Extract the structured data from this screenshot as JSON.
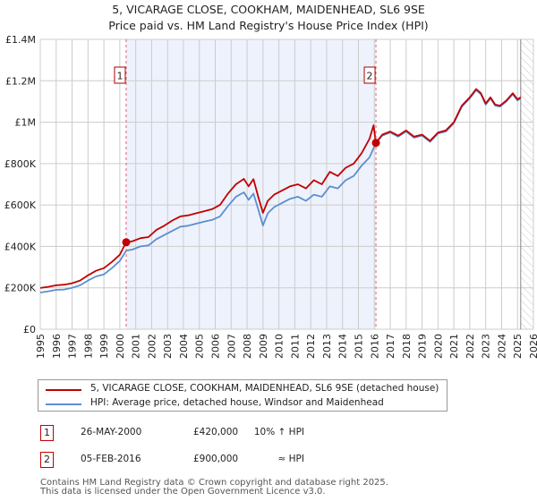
{
  "header": {
    "title": "5, VICARAGE CLOSE, COOKHAM, MAIDENHEAD, SL6 9SE",
    "subtitle": "Price paid vs. HM Land Registry's House Price Index (HPI)"
  },
  "legend": {
    "items": [
      {
        "label": "5, VICARAGE CLOSE, COOKHAM, MAIDENHEAD, SL6 9SE (detached house)",
        "color": "#c00000"
      },
      {
        "label": "HPI: Average price, detached house, Windsor and Maidenhead",
        "color": "#5b8fd0"
      }
    ]
  },
  "sales": [
    {
      "num": "1",
      "date": "26-MAY-2000",
      "price": "£420,000",
      "hpi": "10% ↑ HPI"
    },
    {
      "num": "2",
      "date": "05-FEB-2016",
      "price": "£900,000",
      "hpi": "≈ HPI"
    }
  ],
  "footer": {
    "line1": "Contains HM Land Registry data © Crown copyright and database right 2025.",
    "line2": "This data is licensed under the Open Government Licence v3.0."
  },
  "chart_data": {
    "type": "line",
    "title": "5, VICARAGE CLOSE, COOKHAM, MAIDENHEAD, SL6 9SE",
    "subtitle": "Price paid vs. HM Land Registry's House Price Index (HPI)",
    "xlabel": "",
    "ylabel": "",
    "xlim": [
      1995,
      2026
    ],
    "ylim": [
      0,
      1400000
    ],
    "grid": true,
    "legend_position": "bottom",
    "x_ticks": [
      "1995",
      "1996",
      "1997",
      "1998",
      "1999",
      "2000",
      "2001",
      "2002",
      "2003",
      "2004",
      "2005",
      "2006",
      "2007",
      "2008",
      "2009",
      "2010",
      "2011",
      "2012",
      "2013",
      "2014",
      "2015",
      "2016",
      "2017",
      "2018",
      "2019",
      "2020",
      "2021",
      "2022",
      "2023",
      "2024",
      "2025",
      "2026"
    ],
    "y_ticks": [
      {
        "value": 0,
        "label": "£0"
      },
      {
        "value": 200000,
        "label": "£200K"
      },
      {
        "value": 400000,
        "label": "£400K"
      },
      {
        "value": 600000,
        "label": "£600K"
      },
      {
        "value": 800000,
        "label": "£800K"
      },
      {
        "value": 1000000,
        "label": "£1M"
      },
      {
        "value": 1200000,
        "label": "£1.2M"
      },
      {
        "value": 1400000,
        "label": "£1.4M"
      }
    ],
    "shaded_region": {
      "from": 2000.4,
      "to": 2016.1,
      "color": "#eef2fc"
    },
    "forecast_hatch_from": 2025.2,
    "sale_markers": [
      {
        "num": "1",
        "x": 2000.4,
        "y": 420000
      },
      {
        "num": "2",
        "x": 2016.1,
        "y": 900000
      }
    ],
    "series": [
      {
        "name": "5, VICARAGE CLOSE, COOKHAM, MAIDENHEAD, SL6 9SE (detached house)",
        "color": "#c00000",
        "x": [
          1995.0,
          1995.5,
          1996.0,
          1996.5,
          1997.0,
          1997.5,
          1998.0,
          1998.5,
          1999.0,
          1999.5,
          2000.0,
          2000.4,
          2000.8,
          2001.3,
          2001.8,
          2002.3,
          2002.8,
          2003.3,
          2003.8,
          2004.3,
          2004.8,
          2005.3,
          2005.8,
          2006.3,
          2006.8,
          2007.3,
          2007.8,
          2008.1,
          2008.4,
          2008.7,
          2009.0,
          2009.3,
          2009.7,
          2010.2,
          2010.7,
          2011.2,
          2011.7,
          2012.2,
          2012.7,
          2013.2,
          2013.7,
          2014.2,
          2014.7,
          2015.2,
          2015.7,
          2015.95,
          2016.1,
          2016.5,
          2017.0,
          2017.5,
          2018.0,
          2018.5,
          2019.0,
          2019.5,
          2020.0,
          2020.5,
          2021.0,
          2021.5,
          2022.0,
          2022.4,
          2022.7,
          2023.0,
          2023.3,
          2023.6,
          2023.9,
          2024.3,
          2024.7,
          2025.0,
          2025.2
        ],
        "values": [
          199000,
          205000,
          212000,
          215000,
          222000,
          235000,
          260000,
          282000,
          295000,
          325000,
          360000,
          420000,
          425000,
          440000,
          445000,
          480000,
          500000,
          525000,
          545000,
          550000,
          560000,
          570000,
          580000,
          600000,
          655000,
          700000,
          726000,
          690000,
          725000,
          640000,
          562000,
          620000,
          650000,
          670000,
          690000,
          700000,
          680000,
          720000,
          700000,
          760000,
          740000,
          780000,
          800000,
          850000,
          920000,
          985000,
          900000,
          940000,
          955000,
          935000,
          960000,
          930000,
          940000,
          910000,
          950000,
          960000,
          1000000,
          1080000,
          1120000,
          1160000,
          1140000,
          1090000,
          1120000,
          1085000,
          1080000,
          1105000,
          1140000,
          1110000,
          1120000
        ]
      },
      {
        "name": "HPI: Average price, detached house, Windsor and Maidenhead",
        "color": "#5b8fd0",
        "x": [
          1995.0,
          1995.5,
          1996.0,
          1996.5,
          1997.0,
          1997.5,
          1998.0,
          1998.5,
          1999.0,
          1999.5,
          2000.0,
          2000.4,
          2000.8,
          2001.3,
          2001.8,
          2002.3,
          2002.8,
          2003.3,
          2003.8,
          2004.3,
          2004.8,
          2005.3,
          2005.8,
          2006.3,
          2006.8,
          2007.3,
          2007.8,
          2008.1,
          2008.4,
          2008.7,
          2009.0,
          2009.3,
          2009.7,
          2010.2,
          2010.7,
          2011.2,
          2011.7,
          2012.2,
          2012.7,
          2013.2,
          2013.7,
          2014.2,
          2014.7,
          2015.2,
          2015.7,
          2016.1,
          2016.5,
          2017.0,
          2017.5,
          2018.0,
          2018.5,
          2019.0,
          2019.5,
          2020.0,
          2020.5,
          2021.0,
          2021.5,
          2022.0,
          2022.4,
          2022.7,
          2023.0,
          2023.3,
          2023.6,
          2023.9,
          2024.3,
          2024.7,
          2025.0,
          2025.2
        ],
        "values": [
          177000,
          183000,
          190000,
          192000,
          200000,
          212000,
          235000,
          255000,
          265000,
          295000,
          330000,
          380000,
          385000,
          400000,
          405000,
          435000,
          455000,
          475000,
          495000,
          500000,
          510000,
          520000,
          528000,
          545000,
          595000,
          640000,
          661000,
          625000,
          655000,
          580000,
          501000,
          560000,
          590000,
          610000,
          630000,
          640000,
          620000,
          650000,
          640000,
          690000,
          680000,
          720000,
          740000,
          790000,
          830000,
          900000,
          935000,
          950000,
          930000,
          955000,
          925000,
          935000,
          905000,
          945000,
          955000,
          995000,
          1075000,
          1115000,
          1155000,
          1135000,
          1085000,
          1115000,
          1080000,
          1075000,
          1100000,
          1135000,
          1105000,
          1115000
        ]
      }
    ]
  }
}
